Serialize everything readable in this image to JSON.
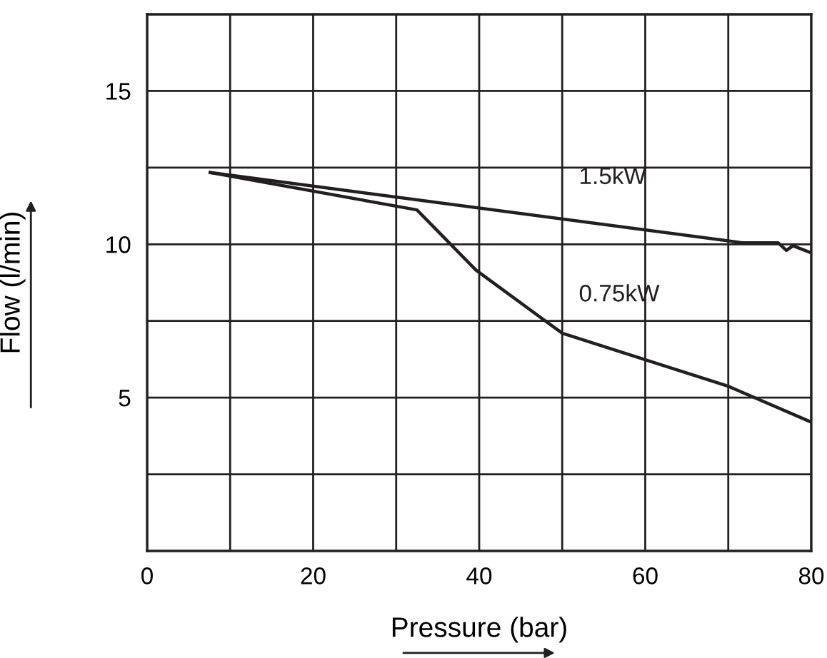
{
  "chart_data": {
    "type": "line",
    "xlabel": "Pressure (bar)",
    "ylabel": "Flow (l/min)",
    "xlim": [
      0,
      80
    ],
    "ylim": [
      0,
      17.5
    ],
    "xticks": [
      0,
      {
        "value": 10,
        "label": null
      },
      20,
      {
        "value": 30,
        "label": null
      },
      40,
      {
        "value": 50,
        "label": null
      },
      60,
      {
        "value": 70,
        "label": null
      },
      80
    ],
    "yticks": [
      {
        "value": 2.5,
        "label": null
      },
      5,
      {
        "value": 7.5,
        "label": null
      },
      10,
      {
        "value": 12.5,
        "label": null
      },
      15,
      {
        "value": 17.5,
        "label": null
      }
    ],
    "grid": true,
    "legend": false,
    "series": [
      {
        "name": "1.5kW",
        "color": "#231f20",
        "x": [
          7.6,
          71.7,
          76,
          77,
          77.8,
          80
        ],
        "values": [
          12.34,
          10.05,
          10.05,
          9.8,
          9.95,
          9.72
        ]
      },
      {
        "name": "0.75kW",
        "color": "#231f20",
        "x": [
          7.6,
          32.5,
          39.6,
          50,
          70,
          80
        ],
        "values": [
          12.34,
          11.12,
          9.16,
          7.1,
          5.37,
          4.2
        ]
      }
    ]
  }
}
